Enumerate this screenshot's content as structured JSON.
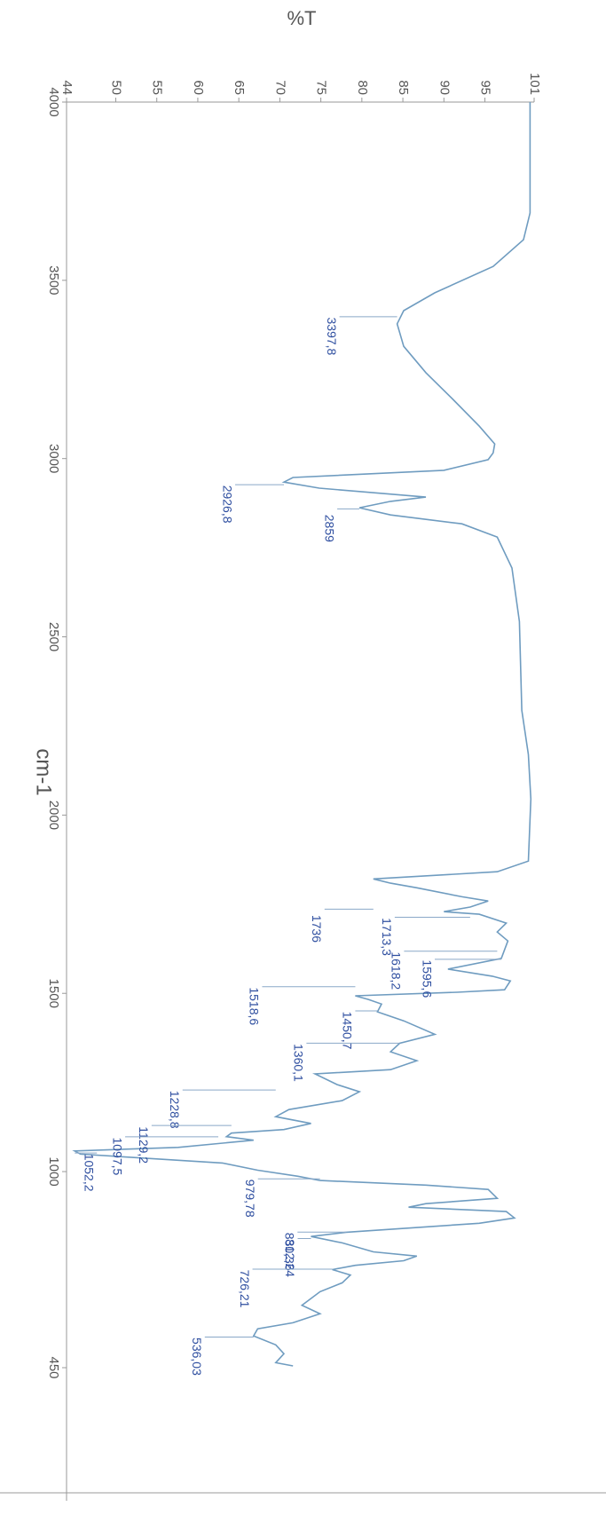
{
  "chart_data": {
    "type": "line",
    "y_label": "%T",
    "x_label": "cm-1",
    "color": "#6f9cc0",
    "xlim": [
      4000,
      450
    ],
    "ylim": [
      44,
      101
    ],
    "xticks": [
      4000,
      3500,
      3000,
      2500,
      2000,
      1500,
      1000,
      450
    ],
    "yticks": [
      44,
      50,
      55,
      60,
      65,
      70,
      75,
      80,
      85,
      90,
      95,
      101
    ],
    "x": [
      4000,
      3689,
      3614,
      3539,
      3465,
      3415,
      3378,
      3315,
      3241,
      3166,
      3091,
      3041,
      3016,
      2997,
      2967,
      2947,
      2934,
      2917,
      2892,
      2880,
      2862,
      2842,
      2817,
      2780,
      2693,
      2543,
      2294,
      2170,
      2045,
      1871,
      1841,
      1821,
      1809,
      1796,
      1771,
      1759,
      1742,
      1729,
      1722,
      1697,
      1672,
      1647,
      1598,
      1568,
      1548,
      1535,
      1510,
      1503,
      1493,
      1483,
      1470,
      1448,
      1423,
      1385,
      1360,
      1336,
      1311,
      1286,
      1274,
      1244,
      1224,
      1199,
      1174,
      1154,
      1135,
      1118,
      1108,
      1098,
      1088,
      1068,
      1058,
      1049,
      1024,
      1004,
      987,
      975,
      962,
      950,
      925,
      910,
      900,
      888,
      870,
      855,
      830,
      818,
      800,
      775,
      763,
      750,
      737,
      725,
      710,
      688,
      663,
      625,
      601,
      576,
      559,
      539,
      514,
      489,
      464,
      455
    ],
    "values": [
      100.5,
      100.5,
      99.7,
      96,
      88.9,
      85.1,
      84.3,
      85.1,
      87.8,
      91.1,
      94.3,
      96.2,
      96,
      95.4,
      90,
      71.6,
      70.5,
      74.8,
      87.8,
      83.5,
      79.7,
      83.5,
      92.2,
      96.5,
      98.3,
      99.2,
      99.5,
      100.3,
      100.6,
      100.3,
      96.5,
      81.4,
      83.5,
      86.7,
      92.2,
      95.4,
      93.2,
      90,
      94.3,
      97.6,
      96.5,
      97.8,
      97,
      90.5,
      95.9,
      98.1,
      97.4,
      91.6,
      79.2,
      80.8,
      82.4,
      81.9,
      85.1,
      88.9,
      84.6,
      83.5,
      86.7,
      83.5,
      74.3,
      77,
      79.7,
      77.6,
      71.1,
      69.5,
      73.8,
      70.5,
      64.1,
      63.5,
      66.8,
      57.6,
      45,
      45.7,
      63,
      67.3,
      72.2,
      74.9,
      87.8,
      95.4,
      96.5,
      87.8,
      85.7,
      97.6,
      98.6,
      94.3,
      78.1,
      73.8,
      77.6,
      81.4,
      86.7,
      85.1,
      79.2,
      76.4,
      78.6,
      77.6,
      74.9,
      72.7,
      74.9,
      71.6,
      67.3,
      66.8,
      69.5,
      70.5,
      69.5,
      71.6
    ],
    "annotations": [
      {
        "x": 3397.8,
        "y": 84.3,
        "label": "3397,8"
      },
      {
        "x": 2926.8,
        "y": 70.5,
        "label": "2926,8"
      },
      {
        "x": 2859,
        "y": 79.7,
        "label": "2859"
      },
      {
        "x": 1736,
        "y": 81.4,
        "label": "1736"
      },
      {
        "x": 1713.3,
        "y": 93.2,
        "label": "1713,3"
      },
      {
        "x": 1618.2,
        "y": 96.5,
        "label": "1618,2"
      },
      {
        "x": 1595.6,
        "y": 97,
        "label": "1595,6"
      },
      {
        "x": 1518.6,
        "y": 79.2,
        "label": "1518,6"
      },
      {
        "x": 1450.7,
        "y": 81.9,
        "label": "1450,7"
      },
      {
        "x": 1360.1,
        "y": 84.6,
        "label": "1360,1"
      },
      {
        "x": 1228.8,
        "y": 69.5,
        "label": "1228,8"
      },
      {
        "x": 1129.2,
        "y": 64.1,
        "label": "1129,2"
      },
      {
        "x": 1097.5,
        "y": 62.5,
        "label": "1097,5"
      },
      {
        "x": 1052.2,
        "y": 45,
        "label": "1052,2"
      },
      {
        "x": 979.78,
        "y": 74.9,
        "label": "979,78"
      },
      {
        "x": 830.36,
        "y": 78.1,
        "label": "830,36"
      },
      {
        "x": 812.24,
        "y": 73.8,
        "label": "812,24"
      },
      {
        "x": 726.21,
        "y": 76.4,
        "label": "726,21"
      },
      {
        "x": 536.03,
        "y": 66.8,
        "label": "536,03"
      }
    ]
  }
}
